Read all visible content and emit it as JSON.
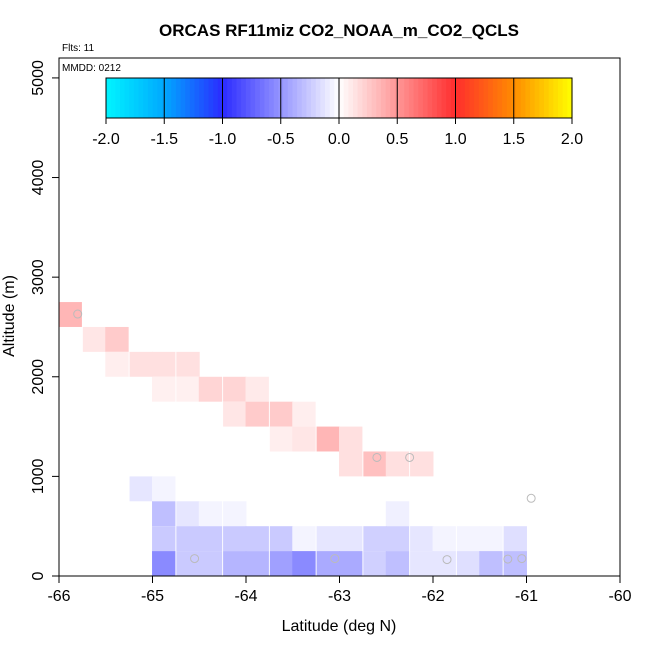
{
  "title": "ORCAS RF11miz CO2_NOAA_m_CO2_QCLS",
  "flights_label": "Flts: 11",
  "date_label": "MMDD: 0212",
  "chart_data": {
    "type": "heatmap",
    "title": "ORCAS RF11miz CO2_NOAA_m_CO2_QCLS",
    "xlabel": "Latitude (deg N)",
    "ylabel": "Altitude (m)",
    "xlim": [
      -66,
      -60
    ],
    "ylim": [
      0,
      5200
    ],
    "x_ticks": [
      -66,
      -65,
      -64,
      -63,
      -62,
      -61,
      -60
    ],
    "y_ticks": [
      0,
      1000,
      2000,
      3000,
      4000,
      5000
    ],
    "grid": false,
    "colorbar": {
      "ticks": [
        -2.0,
        -1.5,
        -1.0,
        -0.5,
        0.0,
        0.5,
        1.0,
        1.5,
        2.0
      ],
      "range": [
        -2.0,
        2.0
      ],
      "colors": {
        "cyan": "#00f5ff",
        "sky": "#00a8ff",
        "blue": "#2b2bff",
        "white": "#ffffff",
        "red": "#ff2d2d",
        "orange": "#ff8c00",
        "yellow": "#ffff00"
      }
    },
    "cells": [
      {
        "lon": -65.88,
        "lat_w": 0.25,
        "alt": 2625,
        "val": 0.35
      },
      {
        "lon": -65.62,
        "lat_w": 0.25,
        "alt": 2375,
        "val": 0.12
      },
      {
        "lon": -65.38,
        "lat_w": 0.25,
        "alt": 2375,
        "val": 0.25
      },
      {
        "lon": -65.38,
        "lat_w": 0.25,
        "alt": 2125,
        "val": 0.08
      },
      {
        "lon": -65.12,
        "lat_w": 0.25,
        "alt": 2125,
        "val": 0.15
      },
      {
        "lon": -64.88,
        "lat_w": 0.25,
        "alt": 2125,
        "val": 0.15
      },
      {
        "lon": -64.62,
        "lat_w": 0.25,
        "alt": 2125,
        "val": 0.15
      },
      {
        "lon": -64.88,
        "lat_w": 0.25,
        "alt": 1875,
        "val": 0.07
      },
      {
        "lon": -64.62,
        "lat_w": 0.25,
        "alt": 1875,
        "val": 0.07
      },
      {
        "lon": -64.38,
        "lat_w": 0.25,
        "alt": 1875,
        "val": 0.2
      },
      {
        "lon": -64.12,
        "lat_w": 0.25,
        "alt": 1875,
        "val": 0.2
      },
      {
        "lon": -63.88,
        "lat_w": 0.25,
        "alt": 1875,
        "val": 0.1
      },
      {
        "lon": -64.12,
        "lat_w": 0.25,
        "alt": 1625,
        "val": 0.12
      },
      {
        "lon": -63.88,
        "lat_w": 0.25,
        "alt": 1625,
        "val": 0.25
      },
      {
        "lon": -63.62,
        "lat_w": 0.25,
        "alt": 1625,
        "val": 0.25
      },
      {
        "lon": -63.38,
        "lat_w": 0.25,
        "alt": 1625,
        "val": 0.08
      },
      {
        "lon": -63.62,
        "lat_w": 0.25,
        "alt": 1375,
        "val": 0.08
      },
      {
        "lon": -63.38,
        "lat_w": 0.25,
        "alt": 1375,
        "val": 0.12
      },
      {
        "lon": -63.12,
        "lat_w": 0.25,
        "alt": 1375,
        "val": 0.35
      },
      {
        "lon": -62.88,
        "lat_w": 0.25,
        "alt": 1375,
        "val": 0.15
      },
      {
        "lon": -62.88,
        "lat_w": 0.25,
        "alt": 1125,
        "val": 0.15
      },
      {
        "lon": -62.62,
        "lat_w": 0.25,
        "alt": 1125,
        "val": 0.3
      },
      {
        "lon": -62.38,
        "lat_w": 0.25,
        "alt": 1125,
        "val": 0.15
      },
      {
        "lon": -62.12,
        "lat_w": 0.25,
        "alt": 1125,
        "val": 0.15
      },
      {
        "lon": -65.12,
        "lat_w": 0.25,
        "alt": 875,
        "val": -0.12
      },
      {
        "lon": -64.88,
        "lat_w": 0.25,
        "alt": 875,
        "val": -0.05
      },
      {
        "lon": -64.88,
        "lat_w": 0.25,
        "alt": 625,
        "val": -0.3
      },
      {
        "lon": -64.62,
        "lat_w": 0.25,
        "alt": 625,
        "val": -0.12
      },
      {
        "lon": -64.38,
        "lat_w": 0.25,
        "alt": 625,
        "val": -0.05
      },
      {
        "lon": -64.12,
        "lat_w": 0.25,
        "alt": 625,
        "val": -0.05
      },
      {
        "lon": -62.38,
        "lat_w": 0.25,
        "alt": 625,
        "val": -0.07
      },
      {
        "lon": -64.88,
        "lat_w": 0.25,
        "alt": 375,
        "val": -0.25
      },
      {
        "lon": -64.62,
        "lat_w": 0.25,
        "alt": 375,
        "val": -0.25
      },
      {
        "lon": -64.38,
        "lat_w": 0.25,
        "alt": 375,
        "val": -0.25
      },
      {
        "lon": -64.12,
        "lat_w": 0.25,
        "alt": 375,
        "val": -0.25
      },
      {
        "lon": -63.88,
        "lat_w": 0.25,
        "alt": 375,
        "val": -0.25
      },
      {
        "lon": -63.62,
        "lat_w": 0.25,
        "alt": 375,
        "val": -0.25
      },
      {
        "lon": -63.38,
        "lat_w": 0.25,
        "alt": 375,
        "val": -0.05
      },
      {
        "lon": -63.12,
        "lat_w": 0.25,
        "alt": 375,
        "val": -0.12
      },
      {
        "lon": -62.88,
        "lat_w": 0.25,
        "alt": 375,
        "val": -0.12
      },
      {
        "lon": -62.62,
        "lat_w": 0.25,
        "alt": 375,
        "val": -0.22
      },
      {
        "lon": -62.38,
        "lat_w": 0.25,
        "alt": 375,
        "val": -0.22
      },
      {
        "lon": -62.12,
        "lat_w": 0.25,
        "alt": 375,
        "val": -0.12
      },
      {
        "lon": -61.88,
        "lat_w": 0.25,
        "alt": 375,
        "val": -0.05
      },
      {
        "lon": -61.62,
        "lat_w": 0.25,
        "alt": 375,
        "val": -0.05
      },
      {
        "lon": -61.38,
        "lat_w": 0.25,
        "alt": 375,
        "val": -0.05
      },
      {
        "lon": -61.12,
        "lat_w": 0.25,
        "alt": 375,
        "val": -0.15
      },
      {
        "lon": -64.88,
        "lat_w": 0.25,
        "alt": 125,
        "val": -0.55
      },
      {
        "lon": -64.62,
        "lat_w": 0.25,
        "alt": 125,
        "val": -0.25
      },
      {
        "lon": -64.38,
        "lat_w": 0.25,
        "alt": 125,
        "val": -0.25
      },
      {
        "lon": -64.12,
        "lat_w": 0.25,
        "alt": 125,
        "val": -0.35
      },
      {
        "lon": -63.88,
        "lat_w": 0.25,
        "alt": 125,
        "val": -0.35
      },
      {
        "lon": -63.62,
        "lat_w": 0.25,
        "alt": 125,
        "val": -0.45
      },
      {
        "lon": -63.38,
        "lat_w": 0.25,
        "alt": 125,
        "val": -0.55
      },
      {
        "lon": -63.12,
        "lat_w": 0.25,
        "alt": 125,
        "val": -0.4
      },
      {
        "lon": -62.88,
        "lat_w": 0.25,
        "alt": 125,
        "val": -0.4
      },
      {
        "lon": -62.62,
        "lat_w": 0.25,
        "alt": 125,
        "val": -0.22
      },
      {
        "lon": -62.38,
        "lat_w": 0.25,
        "alt": 125,
        "val": -0.3
      },
      {
        "lon": -62.12,
        "lat_w": 0.25,
        "alt": 125,
        "val": -0.12
      },
      {
        "lon": -61.88,
        "lat_w": 0.25,
        "alt": 125,
        "val": -0.12
      },
      {
        "lon": -61.62,
        "lat_w": 0.25,
        "alt": 125,
        "val": -0.15
      },
      {
        "lon": -61.38,
        "lat_w": 0.25,
        "alt": 125,
        "val": -0.3
      },
      {
        "lon": -61.12,
        "lat_w": 0.25,
        "alt": 125,
        "val": -0.3
      }
    ],
    "markers": [
      {
        "lat": -65.8,
        "alt": 2630
      },
      {
        "lat": -62.6,
        "alt": 1190
      },
      {
        "lat": -62.25,
        "alt": 1190
      },
      {
        "lat": -60.95,
        "alt": 780
      },
      {
        "lat": -64.55,
        "alt": 175
      },
      {
        "lat": -63.05,
        "alt": 175
      },
      {
        "lat": -61.85,
        "alt": 165
      },
      {
        "lat": -61.2,
        "alt": 170
      },
      {
        "lat": -61.05,
        "alt": 175
      }
    ]
  }
}
